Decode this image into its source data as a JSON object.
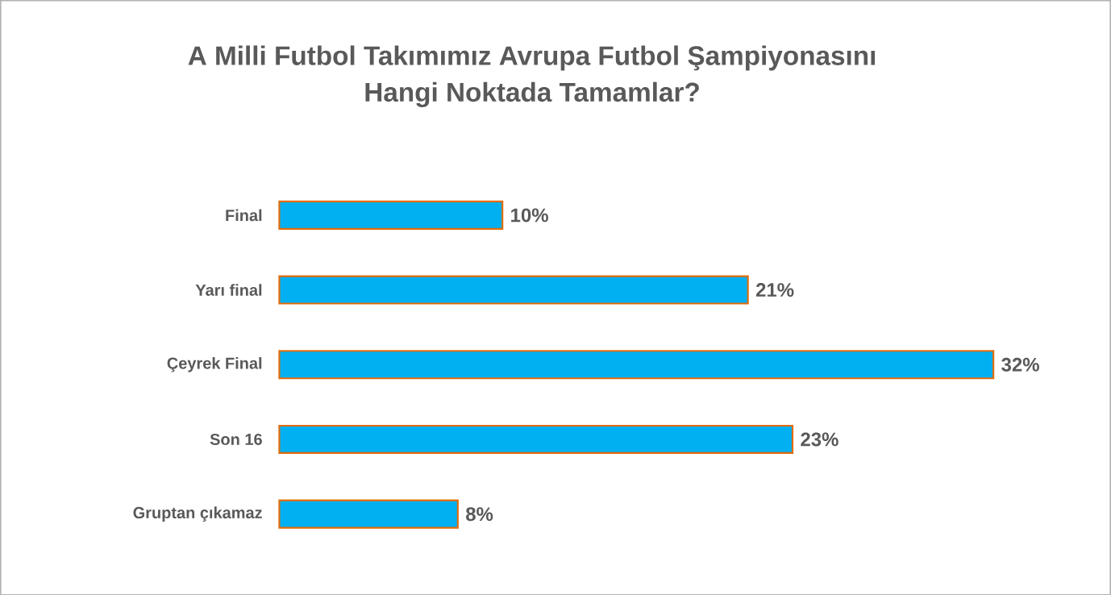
{
  "chart_data": {
    "type": "bar",
    "orientation": "horizontal",
    "title": "A Milli Futbol Takımımız Avrupa Futbol Şampiyonasını\nHangi Noktada Tamamlar?",
    "categories": [
      "Final",
      "Yarı final",
      "Çeyrek Final",
      "Son 16",
      "Gruptan çıkamaz"
    ],
    "values": [
      10,
      21,
      32,
      23,
      8
    ],
    "value_labels": [
      "10%",
      "21%",
      "32%",
      "23%",
      "8%"
    ],
    "color": "#00b0f0"
  }
}
